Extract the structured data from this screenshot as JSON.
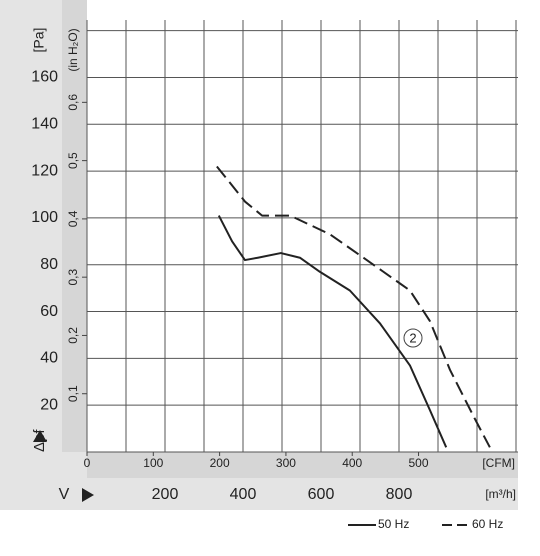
{
  "chart_data": {
    "type": "line",
    "y_label": "[Pa]",
    "y2_label": "(in H₂O)",
    "y_symbol": "Δpf",
    "x_label": "[m³/h]",
    "x2_label": "[CFM]",
    "x_symbol": "V",
    "annotation": "2",
    "xlim": [
      0,
      1100
    ],
    "xticks": [
      200,
      400,
      600,
      800
    ],
    "xgrid": [
      0,
      100,
      200,
      300,
      400,
      500,
      600,
      700,
      800,
      900,
      1000,
      1100
    ],
    "x2lim": [
      0,
      647
    ],
    "x2ticks": [
      0,
      100,
      200,
      300,
      400,
      500
    ],
    "ylim": [
      0,
      182
    ],
    "yticks": [
      20,
      40,
      60,
      80,
      100,
      120,
      140,
      160
    ],
    "ygrid": [
      0,
      20,
      40,
      60,
      80,
      100,
      120,
      140,
      160,
      180
    ],
    "y2lim": [
      0,
      0.731
    ],
    "y2ticks": [
      {
        "value": 0.1,
        "label": "0,1"
      },
      {
        "value": 0.2,
        "label": "0,2"
      },
      {
        "value": 0.3,
        "label": "0,3"
      },
      {
        "value": 0.4,
        "label": "0,4"
      },
      {
        "value": 0.5,
        "label": "0,5"
      },
      {
        "value": 0.6,
        "label": "0,6"
      }
    ],
    "series": [
      {
        "name": "50 Hz",
        "color": "#222222",
        "dash": false,
        "x": [
          338,
          372,
          405,
          438,
          497,
          546,
          597,
          674,
          751,
          828,
          879,
          921
        ],
        "values": [
          101,
          90,
          82,
          83,
          85,
          83,
          77,
          69,
          55,
          37,
          18,
          2
        ]
      },
      {
        "name": "60 Hz",
        "color": "#222222",
        "dash": true,
        "x": [
          333,
          405,
          449,
          521,
          623,
          726,
          828,
          879,
          931,
          995,
          1033
        ],
        "values": [
          122,
          107,
          101,
          101,
          93,
          81,
          69,
          56,
          35,
          14,
          2
        ]
      }
    ]
  }
}
